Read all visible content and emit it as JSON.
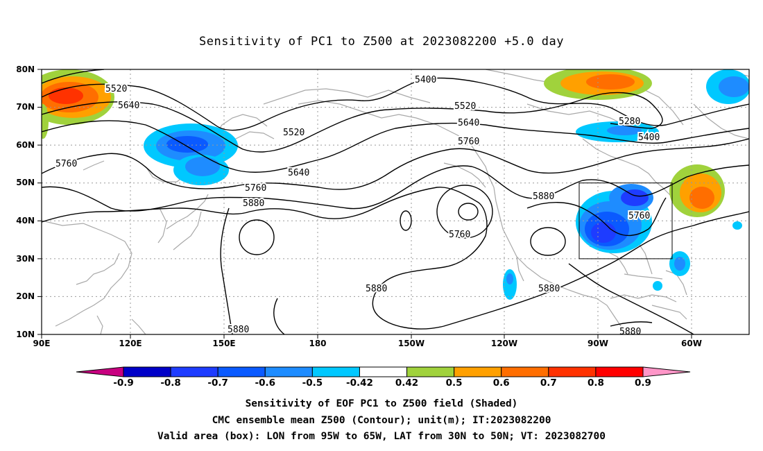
{
  "title": "Sensitivity of PC1 to Z500 at 2023082200 +5.0 day",
  "lat_labels": [
    "80N",
    "70N",
    "60N",
    "50N",
    "40N",
    "30N",
    "20N",
    "10N"
  ],
  "lon_labels": [
    "90E",
    "120E",
    "150E",
    "180",
    "150W",
    "120W",
    "90W",
    "60W"
  ],
  "contour_labels": [
    "5520",
    "5640",
    "5760",
    "5400",
    "5520",
    "5640",
    "5760",
    "5520",
    "5640",
    "5760",
    "5880",
    "5280",
    "5400",
    "5880",
    "5760",
    "5760",
    "5880",
    "5880",
    "5880",
    "5880"
  ],
  "colorbar": {
    "labels": [
      "-0.9",
      "-0.8",
      "-0.7",
      "-0.6",
      "-0.5",
      "-0.42",
      "0.42",
      "0.5",
      "0.6",
      "0.7",
      "0.8",
      "0.9"
    ],
    "colors": [
      "#c80080",
      "#0000c8",
      "#1e3cff",
      "#0a5aff",
      "#1e8cff",
      "#00c8ff",
      "#ffffff",
      "#a0d23c",
      "#ffa000",
      "#ff6e00",
      "#ff3200",
      "#ff0000",
      "#ff96c8"
    ]
  },
  "captions": [
    "Sensitivity of EOF PC1 to Z500 field (Shaded)",
    "CMC ensemble mean Z500 (Contour); unit(m); IT:2023082200",
    "Valid area (box): LON from 95W to 65W, LAT from 30N to 50N; VT: 2023082700"
  ]
}
